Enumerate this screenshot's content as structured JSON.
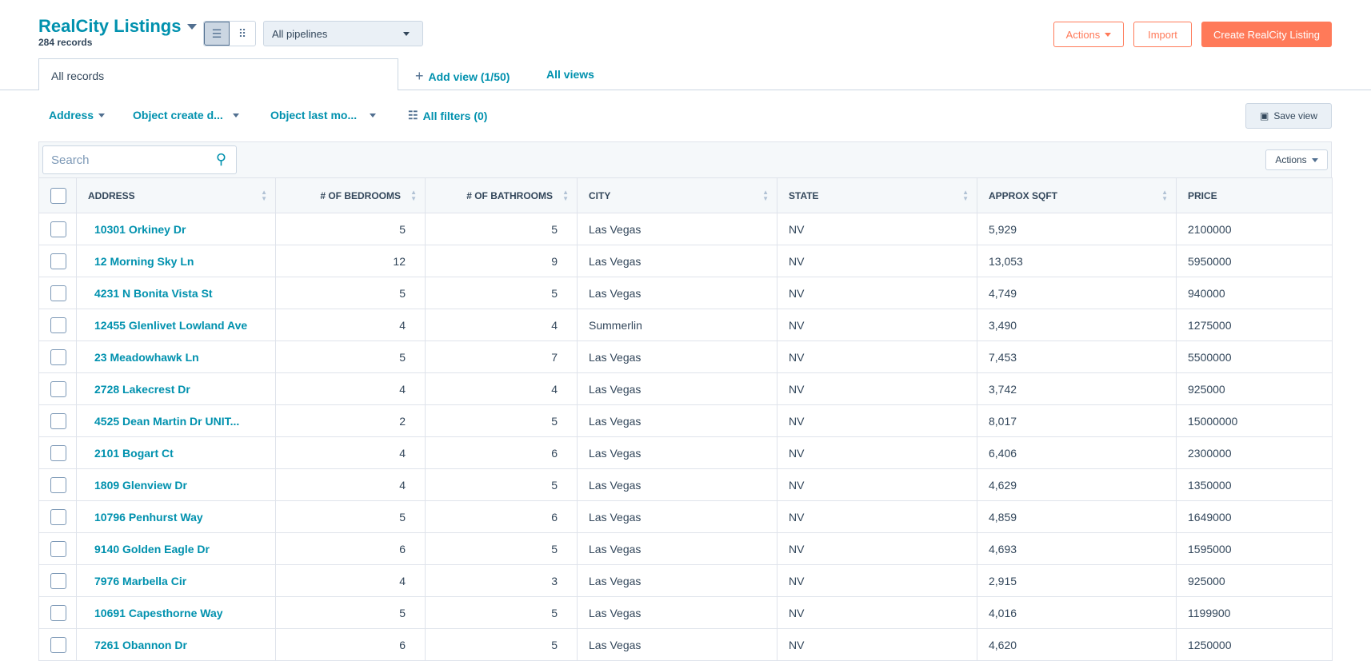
{
  "header": {
    "title": "RealCity Listings",
    "record_count": "284 records",
    "pipeline": "All pipelines",
    "actions": "Actions",
    "import": "Import",
    "create": "Create RealCity Listing"
  },
  "tabs": {
    "active": "All records",
    "add_view": "Add view (1/50)",
    "all_views": "All views"
  },
  "filters": {
    "address": "Address",
    "created": "Object create d...",
    "modified": "Object last mo...",
    "all_filters": "All filters (0)",
    "save_view": "Save view"
  },
  "table": {
    "search_placeholder": "Search",
    "actions": "Actions",
    "columns": [
      "ADDRESS",
      "# OF BEDROOMS",
      "# OF BATHROOMS",
      "CITY",
      "STATE",
      "APPROX SQFT",
      "PRICE"
    ],
    "rows": [
      [
        "10301 Orkiney Dr",
        "5",
        "5",
        "Las Vegas",
        "NV",
        "5,929",
        "2100000"
      ],
      [
        "12 Morning Sky Ln",
        "12",
        "9",
        "Las Vegas",
        "NV",
        "13,053",
        "5950000"
      ],
      [
        "4231 N Bonita Vista St",
        "5",
        "5",
        "Las Vegas",
        "NV",
        "4,749",
        "940000"
      ],
      [
        "12455 Glenlivet Lowland Ave",
        "4",
        "4",
        "Summerlin",
        "NV",
        "3,490",
        "1275000"
      ],
      [
        "23 Meadowhawk Ln",
        "5",
        "7",
        "Las Vegas",
        "NV",
        "7,453",
        "5500000"
      ],
      [
        "2728 Lakecrest Dr",
        "4",
        "4",
        "Las Vegas",
        "NV",
        "3,742",
        "925000"
      ],
      [
        "4525 Dean Martin Dr UNIT...",
        "2",
        "5",
        "Las Vegas",
        "NV",
        "8,017",
        "15000000"
      ],
      [
        "2101 Bogart Ct",
        "4",
        "6",
        "Las Vegas",
        "NV",
        "6,406",
        "2300000"
      ],
      [
        "1809 Glenview Dr",
        "4",
        "5",
        "Las Vegas",
        "NV",
        "4,629",
        "1350000"
      ],
      [
        "10796 Penhurst Way",
        "5",
        "6",
        "Las Vegas",
        "NV",
        "4,859",
        "1649000"
      ],
      [
        "9140 Golden Eagle Dr",
        "6",
        "5",
        "Las Vegas",
        "NV",
        "4,693",
        "1595000"
      ],
      [
        "7976 Marbella Cir",
        "4",
        "3",
        "Las Vegas",
        "NV",
        "2,915",
        "925000"
      ],
      [
        "10691 Capesthorne Way",
        "5",
        "5",
        "Las Vegas",
        "NV",
        "4,016",
        "1199900"
      ],
      [
        "7261 Obannon Dr",
        "6",
        "5",
        "Las Vegas",
        "NV",
        "4,620",
        "1250000"
      ]
    ]
  }
}
